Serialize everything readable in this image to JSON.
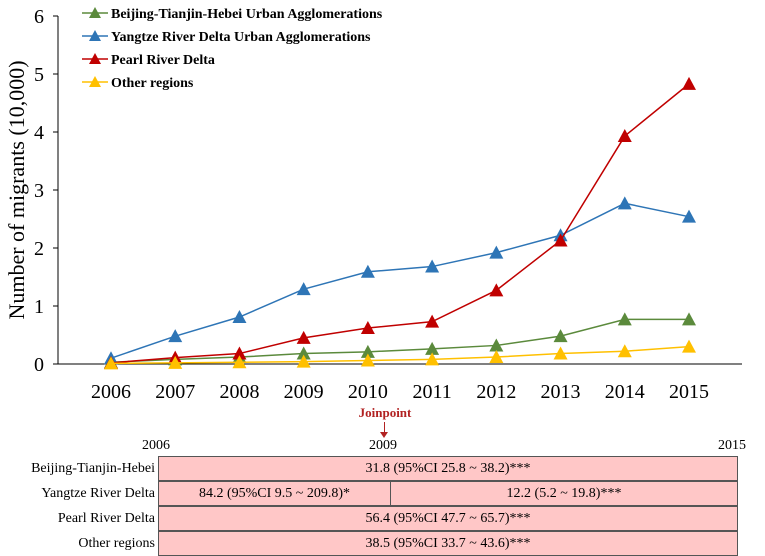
{
  "chart_data": {
    "type": "line",
    "title": "",
    "xlabel": "",
    "ylabel": "Number of migrants (10,000)",
    "x": [
      "2006",
      "2007",
      "2008",
      "2009",
      "2010",
      "2011",
      "2012",
      "2013",
      "2014",
      "2015"
    ],
    "ylim": [
      0,
      6
    ],
    "yticks": [
      "0",
      "1",
      "2",
      "3",
      "4",
      "5",
      "6"
    ],
    "grid": false,
    "legend_position": "top-left",
    "series": [
      {
        "name": "Beijing-Tianjin-Hebei Urban Agglomerations",
        "color": "#5b8a3c",
        "values": [
          0.03,
          0.08,
          0.12,
          0.18,
          0.21,
          0.26,
          0.32,
          0.48,
          0.77,
          0.77
        ]
      },
      {
        "name": "Yangtze River Delta Urban Agglomerations",
        "color": "#2e75b6",
        "values": [
          0.1,
          0.48,
          0.81,
          1.29,
          1.59,
          1.68,
          1.92,
          2.22,
          2.77,
          2.54
        ]
      },
      {
        "name": "Pearl River Delta",
        "color": "#c00000",
        "values": [
          0.02,
          0.11,
          0.18,
          0.45,
          0.62,
          0.73,
          1.27,
          2.13,
          3.93,
          4.83
        ]
      },
      {
        "name": "Other regions",
        "color": "#ffc000",
        "values": [
          0.01,
          0.02,
          0.03,
          0.04,
          0.06,
          0.08,
          0.12,
          0.18,
          0.22,
          0.3
        ]
      }
    ]
  },
  "joinpoint": {
    "label": "Joinpoint",
    "year_start": "2006",
    "year_joint": "2009",
    "year_end": "2015",
    "rows": [
      {
        "label": "Beijing-Tianjin-Hebei",
        "segments": [
          "31.8 (95%CI 25.8 ~ 38.2)***"
        ]
      },
      {
        "label": "Yangtze River Delta",
        "segments": [
          "84.2 (95%CI 9.5 ~ 209.8)*",
          "12.2 (5.2 ~ 19.8)***"
        ]
      },
      {
        "label": "Pearl River Delta",
        "segments": [
          "56.4 (95%CI 47.7 ~ 65.7)***"
        ]
      },
      {
        "label": "Other regions",
        "segments": [
          "38.5 (95%CI 33.7 ~ 43.6)***"
        ]
      }
    ]
  }
}
